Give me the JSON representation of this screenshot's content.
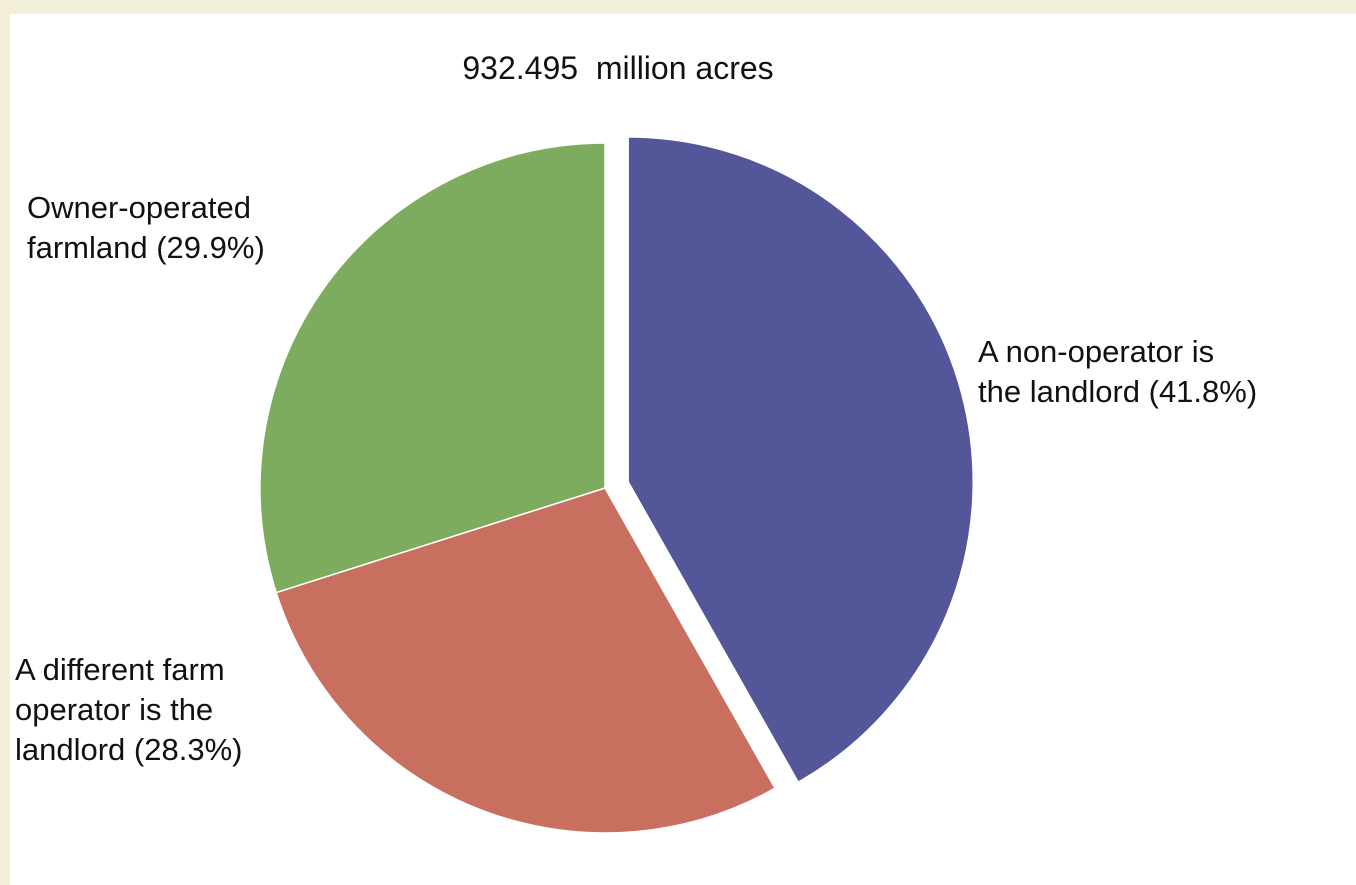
{
  "chart_data": {
    "type": "pie",
    "title": "932.495  million acres",
    "slices": [
      {
        "name": "A non-operator is the landlord",
        "value": 41.8,
        "color": "#54569a",
        "exploded": true,
        "label_lines": [
          "A non-operator is",
          "the landlord (41.8%)"
        ]
      },
      {
        "name": "A different farm operator is the landlord",
        "value": 28.3,
        "color": "#c86f60",
        "exploded": false,
        "label_lines": [
          "A different farm",
          "operator is the",
          "landlord (28.3%)"
        ]
      },
      {
        "name": "Owner-operated farmland",
        "value": 29.9,
        "color": "#7dac5e",
        "exploded": false,
        "label_lines": [
          "Owner-operated",
          "farmland (29.9%)"
        ]
      }
    ],
    "start_angle_deg": 0,
    "direction": "clockwise",
    "legend": "none"
  }
}
